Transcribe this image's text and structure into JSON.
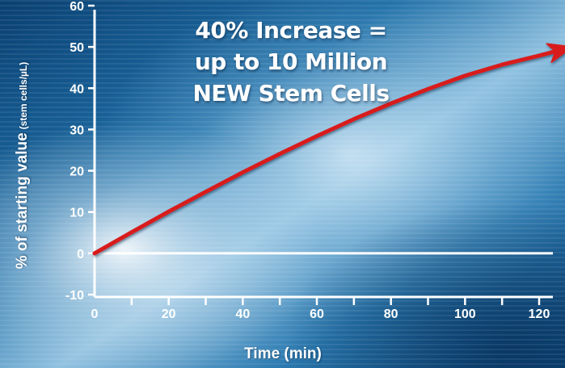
{
  "headline": {
    "line1": "40% Increase =",
    "line2": "up to 10 Million",
    "line3": "NEW Stem Cells"
  },
  "colors": {
    "background_dark": "#0e4a7c",
    "background_light": "#cfe4f2",
    "axis": "#ffffff",
    "curve": "#d81e1e",
    "text": "#ffffff"
  },
  "chart_data": {
    "type": "line",
    "xlabel": "Time (min)",
    "ylabel": "% of starting value",
    "ylabel_unit": "(stem cells/µL)",
    "xlim": [
      0,
      120
    ],
    "ylim": [
      -10,
      60
    ],
    "x_ticks": [
      0,
      20,
      40,
      60,
      80,
      100,
      120
    ],
    "y_ticks": [
      60,
      50,
      40,
      30,
      20,
      10,
      0,
      -10
    ],
    "grid": false,
    "series": [
      {
        "x": [
          0,
          10,
          20,
          30,
          40,
          50,
          60,
          70,
          80,
          90,
          100,
          110,
          120,
          129
        ],
        "y": [
          0,
          5.1,
          10.1,
          14.9,
          19.6,
          24.1,
          28.4,
          32.5,
          36.3,
          39.8,
          43.0,
          45.7,
          47.9,
          50.0
        ]
      }
    ]
  }
}
